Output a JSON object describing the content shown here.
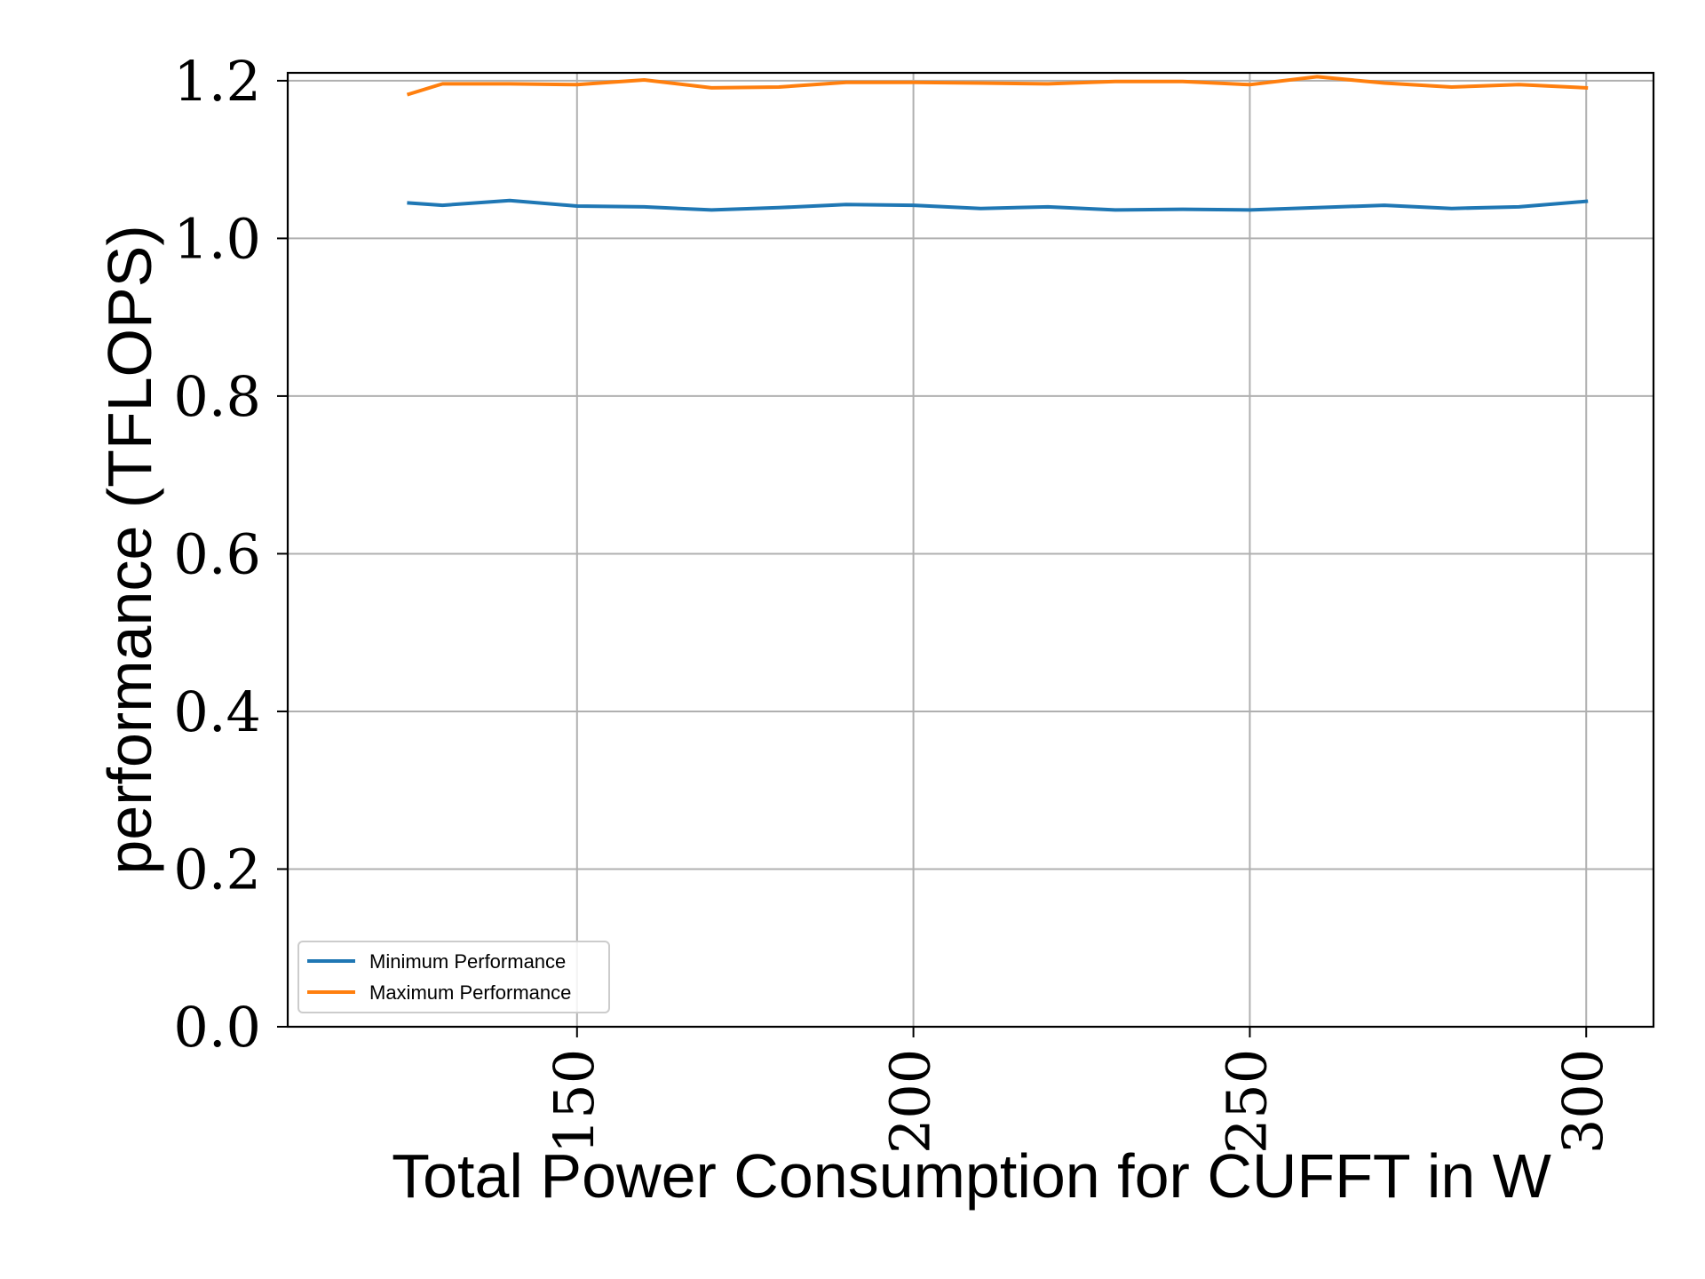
{
  "chart_data": {
    "type": "line",
    "title": "",
    "xlabel": "Total Power Consumption for CUFFT in W",
    "ylabel": "performance (TFLOPS)",
    "xlim": [
      107,
      310
    ],
    "ylim": [
      0.0,
      1.21
    ],
    "grid": true,
    "legend_position": "lower-left",
    "xticks": [
      150,
      200,
      250,
      300
    ],
    "xtick_labels": [
      "150",
      "200",
      "250",
      "300"
    ],
    "yticks": [
      0.0,
      0.2,
      0.4,
      0.6,
      0.8,
      1.0,
      1.2
    ],
    "ytick_labels": [
      "0.0",
      "0.2",
      "0.4",
      "0.6",
      "0.8",
      "1.0",
      "1.2"
    ],
    "x": [
      125,
      130,
      140,
      150,
      160,
      170,
      180,
      190,
      200,
      210,
      220,
      230,
      240,
      250,
      260,
      270,
      280,
      290,
      300
    ],
    "series": [
      {
        "name": "Minimum Performance",
        "color": "#1f77b4",
        "values": [
          1.045,
          1.042,
          1.048,
          1.041,
          1.04,
          1.036,
          1.039,
          1.043,
          1.042,
          1.038,
          1.04,
          1.036,
          1.037,
          1.036,
          1.039,
          1.042,
          1.038,
          1.04,
          1.047
        ]
      },
      {
        "name": "Maximum Performance",
        "color": "#ff7f0e",
        "values": [
          1.183,
          1.196,
          1.196,
          1.195,
          1.201,
          1.191,
          1.192,
          1.198,
          1.198,
          1.197,
          1.196,
          1.199,
          1.199,
          1.195,
          1.205,
          1.197,
          1.192,
          1.195,
          1.191
        ]
      }
    ]
  }
}
